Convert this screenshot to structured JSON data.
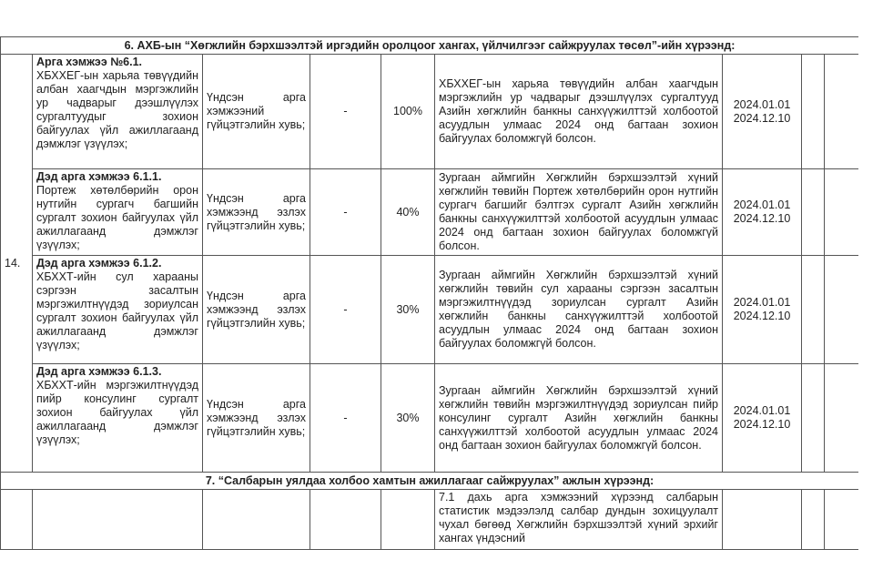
{
  "section_6": {
    "title": "6. АХБ-ын “Хөгжлийн бэрхшээлтэй иргэдийн оролцоог хангах, үйлчилгээг сайжруулах төсөл”-ийн хүрээнд:",
    "number": "14.",
    "rows": [
      {
        "heading": "Арга хэмжээ №6.1.",
        "text": "ХБХХЕГ-ын харьяа төвүүдийн албан хаагчдын мэргэжлийн ур чадварыг дээшлүүлэх сургалтуудыг зохион байгуулах үйл ажиллагаанд дэмжлэг үзүүлэх;",
        "indicator": "Үндсэн арга хэмжээний гүйцэтгэлийн хувь;",
        "baseline": "-",
        "target": "100%",
        "result": "ХБХХЕГ-ын харьяа төвүүдийн албан хаагчдын мэргэжлийн ур чадварыг дээшлүүлэх сургалтууд Азийн хөгжлийн банкны санхүүжилттэй холбоотой асуудлын улмаас 2024 онд багтаан зохион байгуулах боломжгүй болсон.",
        "dates": [
          "2024.01.01",
          "2024.12.10"
        ]
      },
      {
        "heading": "Дэд арга хэмжээ 6.1.1.",
        "text": "Портеж хөтөлбөрийн орон нутгийн сургагч багшийн сургалт зохион байгуулах үйл ажиллагаанд дэмжлэг үзүүлэх;",
        "indicator": "Үндсэн арга хэмжээнд эзлэх гүйцэтгэлийн хувь;",
        "baseline": "-",
        "target": "40%",
        "result": "Зургаан аймгийн Хөгжлийн бэрхшээлтэй хүний хөгжлийн төвийн Портеж хөтөлбөрийн орон нутгийн сургагч багшийг бэлтгэх сургалт Азийн хөгжлийн банкны санхүүжилттэй холбоотой асуудлын улмаас 2024 онд багтаан зохион байгуулах боломжгүй болсон.",
        "dates": [
          "2024.01.01",
          "2024.12.10"
        ]
      },
      {
        "heading": "Дэд арга хэмжээ 6.1.2.",
        "text": "ХБХХТ-ийн сул харааны сэргээн засалтын мэргэжилтнүүдэд зориулсан сургалт зохион байгуулах үйл ажиллагаанд дэмжлэг үзүүлэх;",
        "indicator": "Үндсэн арга хэмжээнд эзлэх гүйцэтгэлийн хувь;",
        "baseline": "-",
        "target": "30%",
        "result": "Зургаан аймгийн Хөгжлийн бэрхшээлтэй хүний хөгжлийн төвийн сул харааны сэргээн засалтын мэргэжилтнүүдэд зориулсан сургалт Азийн хөгжлийн банкны санхүүжилттэй холбоотой асуудлын улмаас 2024 онд багтаан зохион байгуулах боломжгүй болсон.",
        "dates": [
          "2024.01.01",
          "2024.12.10"
        ]
      },
      {
        "heading": "Дэд арга хэмжээ 6.1.3.",
        "text": "ХБХХТ-ийн мэргэжилтнүүдэд пийр консулинг сургалт зохион байгуулах үйл ажиллагаанд дэмжлэг үзүүлэх;",
        "indicator": "Үндсэн арга хэмжээнд эзлэх гүйцэтгэлийн хувь;",
        "baseline": "-",
        "target": "30%",
        "result": "Зургаан аймгийн Хөгжлийн бэрхшээлтэй хүний хөгжлийн төвийн мэргэжилтнүүдэд зориулсан пийр консулинг сургалт Азийн хөгжлийн банкны санхүүжилттэй холбоотой асуудлын улмаас 2024 онд багтаан зохион байгуулах боломжгүй болсон.",
        "dates": [
          "2024.01.01",
          "2024.12.10"
        ]
      }
    ]
  },
  "section_7": {
    "title": "7. “Салбарын уялдаа холбоо хамтын ажиллагааг сайжруулах” ажлын хүрээнд:",
    "rows": [
      {
        "result": "7.1 дахь арга хэмжээний хүрээнд салбарын статистик мэдээлэлд салбар дундын зохицуулалт чухал бөгөөд Хөгжлийн бэрхшээлтэй хүний эрхийг хангах үндэсний"
      }
    ]
  }
}
